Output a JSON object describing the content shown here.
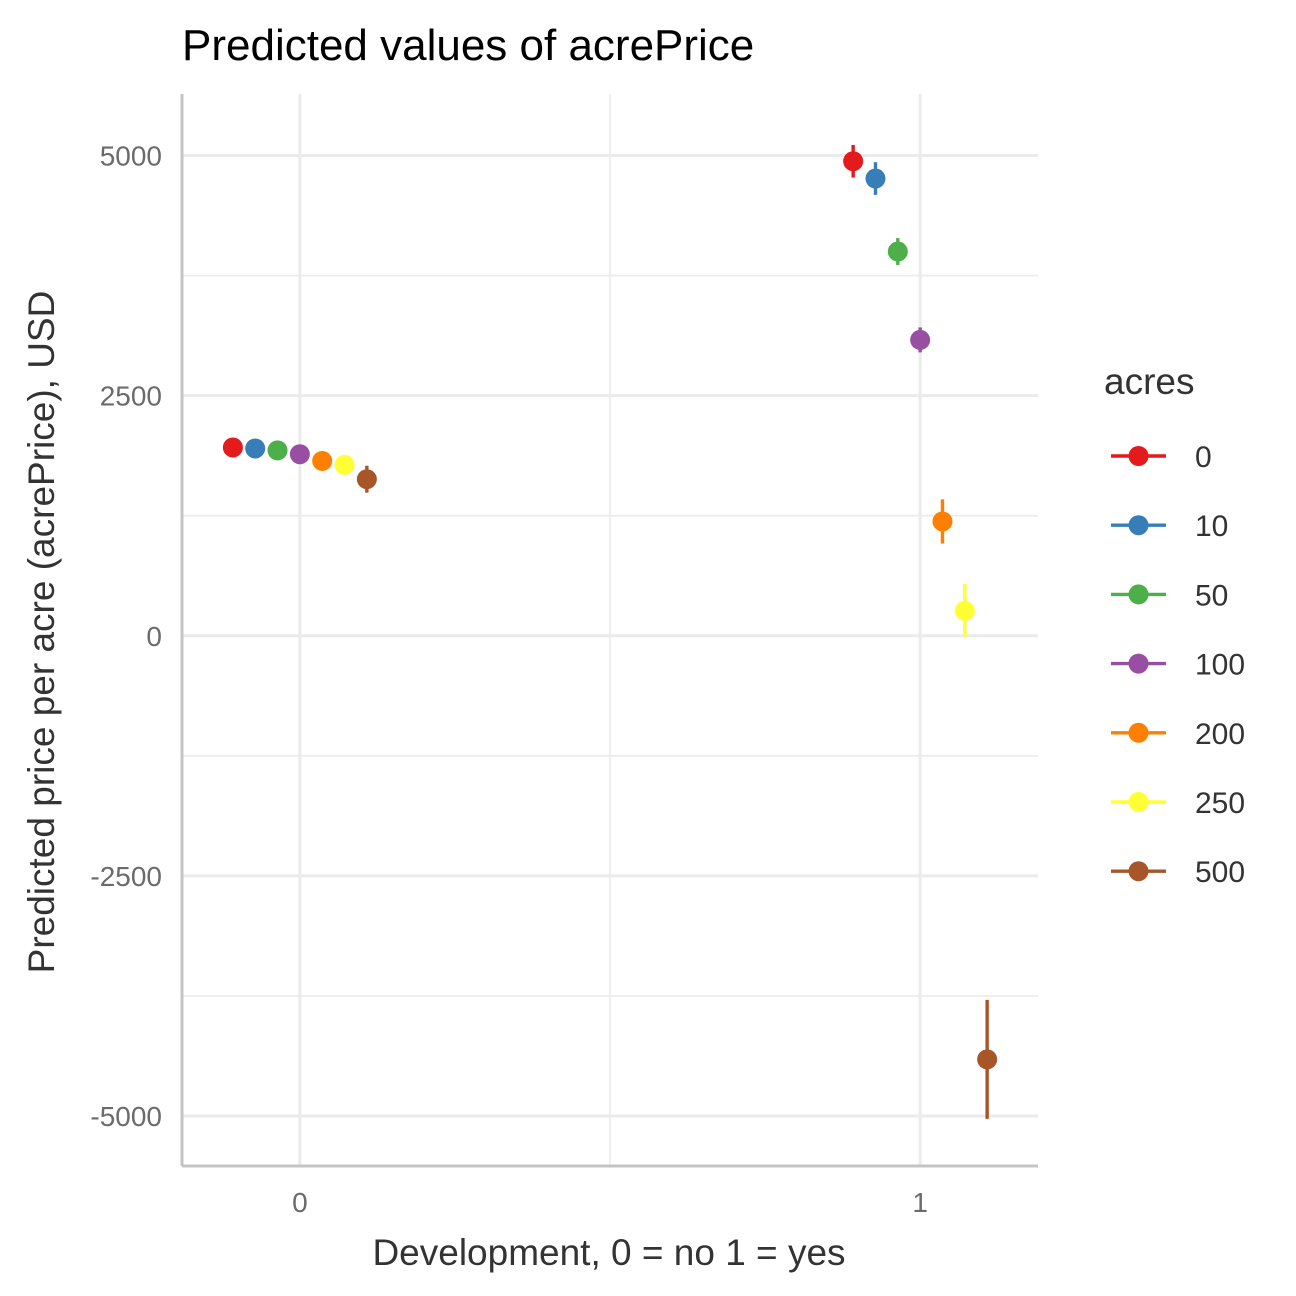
{
  "chart_data": {
    "type": "scatter",
    "title": "Predicted values of acrePrice",
    "xlabel": "Development, 0 = no 1 = yes",
    "ylabel": "Predicted price per acre (acrePrice), USD",
    "x_ticks": [
      "0",
      "1"
    ],
    "y_ticks": [
      5000,
      2500,
      0,
      -2500,
      -5000
    ],
    "y_tick_labels": [
      "5000",
      "2500",
      "0",
      "-2500",
      "-5000"
    ],
    "xlim": [
      -0.19,
      1.19
    ],
    "ylim": [
      -5520,
      5640
    ],
    "grid": true,
    "legend": {
      "title": "acres",
      "position": "right"
    },
    "series": [
      {
        "name": "0",
        "color": "#E41A1C",
        "points": [
          {
            "x": 0,
            "y": 1960,
            "lower": 1880,
            "upper": 2040
          },
          {
            "x": 1,
            "y": 4940,
            "lower": 4770,
            "upper": 5110
          }
        ]
      },
      {
        "name": "10",
        "color": "#377EB8",
        "points": [
          {
            "x": 0,
            "y": 1950,
            "lower": 1870,
            "upper": 2030
          },
          {
            "x": 1,
            "y": 4760,
            "lower": 4590,
            "upper": 4930
          }
        ]
      },
      {
        "name": "50",
        "color": "#4DAF4A",
        "points": [
          {
            "x": 0,
            "y": 1930,
            "lower": 1850,
            "upper": 2010
          },
          {
            "x": 1,
            "y": 4000,
            "lower": 3860,
            "upper": 4140
          }
        ]
      },
      {
        "name": "100",
        "color": "#984EA3",
        "points": [
          {
            "x": 0,
            "y": 1890,
            "lower": 1800,
            "upper": 1980
          },
          {
            "x": 1,
            "y": 3080,
            "lower": 2950,
            "upper": 3210
          }
        ]
      },
      {
        "name": "200",
        "color": "#FF7F00",
        "points": [
          {
            "x": 0,
            "y": 1820,
            "lower": 1720,
            "upper": 1920
          },
          {
            "x": 1,
            "y": 1190,
            "lower": 960,
            "upper": 1420
          }
        ]
      },
      {
        "name": "250",
        "color": "#FFFF33",
        "points": [
          {
            "x": 0,
            "y": 1780,
            "lower": 1680,
            "upper": 1880
          },
          {
            "x": 1,
            "y": 260,
            "lower": -20,
            "upper": 540
          }
        ]
      },
      {
        "name": "500",
        "color": "#A65628",
        "points": [
          {
            "x": 0,
            "y": 1630,
            "lower": 1490,
            "upper": 1770
          },
          {
            "x": 1,
            "y": -4410,
            "lower": -5030,
            "upper": -3790
          }
        ]
      }
    ]
  }
}
